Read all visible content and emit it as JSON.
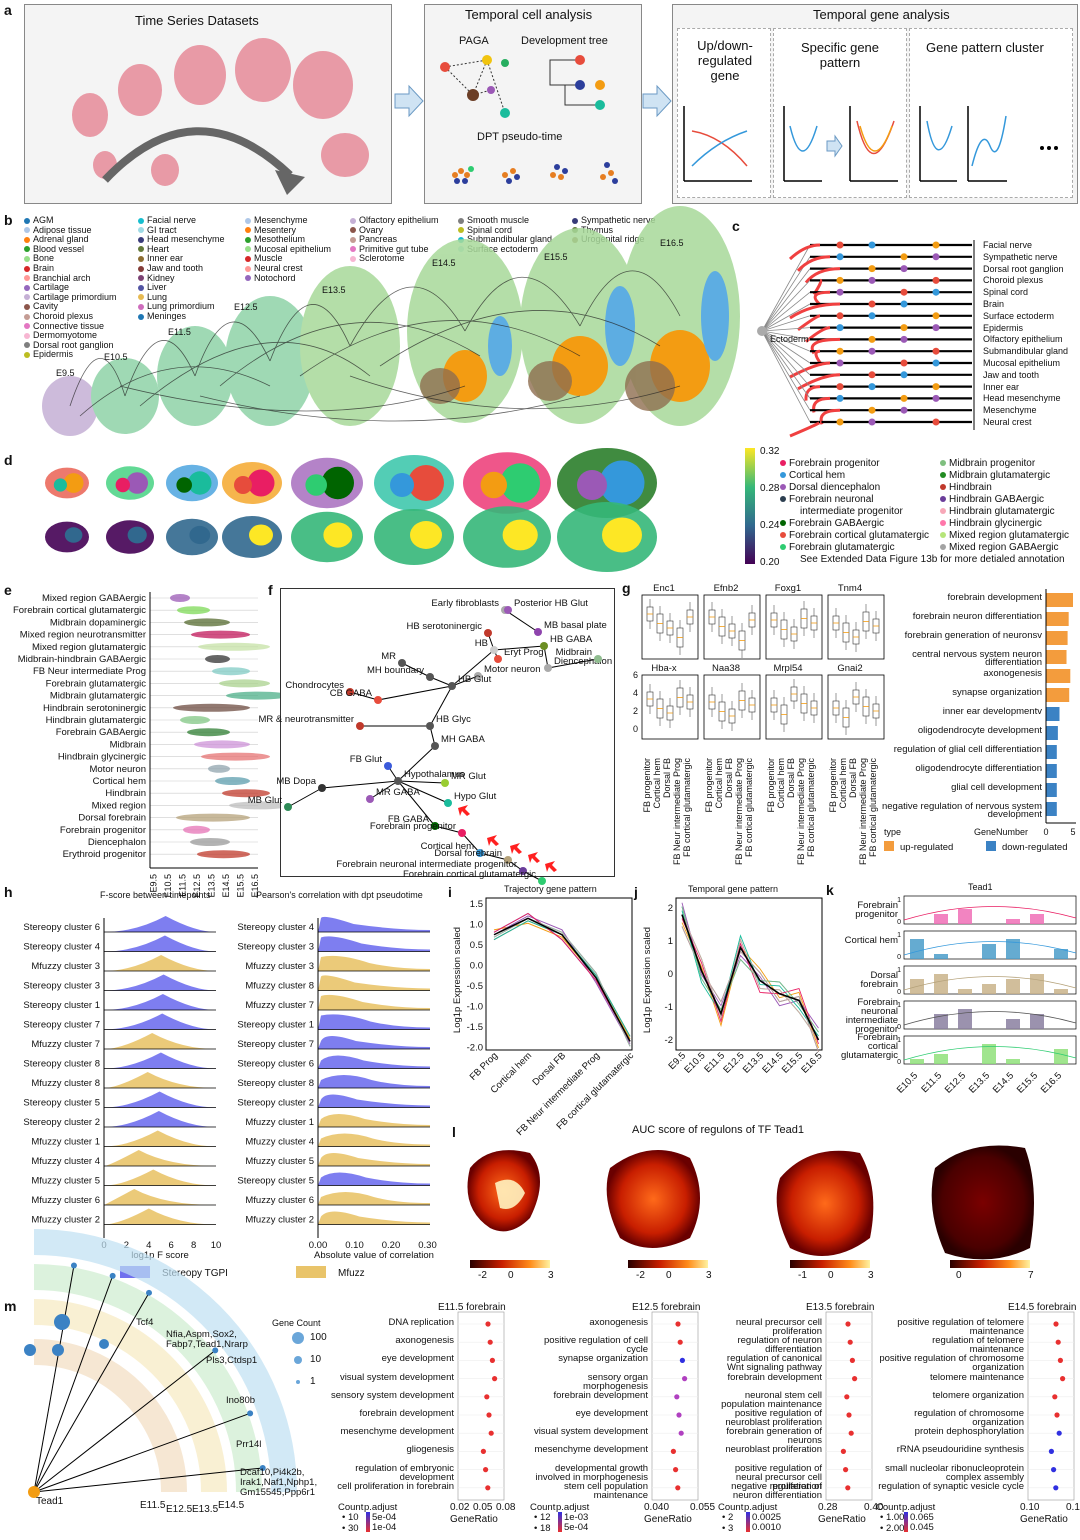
{
  "panels": {
    "a": {
      "letter": "a",
      "box1_title": "Time Series Datasets",
      "box2_title": "Temporal cell analysis",
      "box2_items": [
        "PAGA",
        "Development tree",
        "DPT pseudo-time"
      ],
      "box3_title": "Temporal gene analysis",
      "box3_items": [
        "Up/down-regulated gene",
        "Specific gene pattern",
        "Gene pattern cluster"
      ]
    },
    "b": {
      "letter": "b",
      "legend_col1": [
        "AGM",
        "Adipose tissue",
        "Adrenal gland",
        "Blood vessel",
        "Bone",
        "Brain",
        "Branchial arch",
        "Cartilage",
        "Cartilage primordium",
        "Cavity",
        "Choroid plexus",
        "Connective tissue",
        "Dermomyotome",
        "Dorsal root ganglion",
        "Epidermis"
      ],
      "legend_col2": [
        "Facial nerve",
        "GI tract",
        "Head mesenchyme",
        "Heart",
        "Inner ear",
        "Jaw and tooth",
        "Kidney",
        "Liver",
        "Lung",
        "Lung primordium",
        "Meninges"
      ],
      "legend_col3": [
        "Mesenchyme",
        "Mesentery",
        "Mesothelium",
        "Mucosal epithelium",
        "Muscle",
        "Neural crest",
        "Notochord"
      ],
      "legend_col4": [
        "Olfactory epithelium",
        "Ovary",
        "Pancreas",
        "Primitive gut tube",
        "Sclerotome"
      ],
      "legend_col5": [
        "Smooth muscle",
        "Spinal cord",
        "Submandibular gland",
        "Surface ectoderm"
      ],
      "legend_col6": [
        "Sympathetic nerve",
        "Thymus",
        "Urogenital ridge"
      ],
      "stages": [
        "E9.5",
        "E10.5",
        "E11.5",
        "E12.5",
        "E13.5",
        "E14.5",
        "E15.5",
        "E16.5"
      ]
    },
    "c": {
      "letter": "c",
      "root_label": "Ectoderm",
      "leaves": [
        "Facial nerve",
        "Sympathetic nerve",
        "Dorsal root ganglion",
        "Choroid plexus",
        "Spinal cord",
        "Brain",
        "Surface ectoderm",
        "Epidermis",
        "Olfactory epithelium",
        "Submandibular gland",
        "Mucosal epithelium",
        "Jaw and tooth",
        "Inner ear",
        "Head mesenchyme",
        "Mesenchyme",
        "Neural crest"
      ]
    },
    "d": {
      "letter": "d",
      "colorbar_ticks": [
        "0.32",
        "0.28",
        "0.24",
        "0.20"
      ],
      "legend_col1": [
        "Forebrain progenitor",
        "Cortical hem",
        "Dorsal diencephalon",
        "Forebrain neuronal",
        "intermediate progenitor",
        "Forebrain GABAergic",
        "Forebrain cortical glutamatergic",
        "Forebrain glutamatergic"
      ],
      "legend_col2": [
        "Midbrain progenitor",
        "Midbrain glutamatergic",
        "Hindbrain",
        "Hindbrain GABAergic",
        "Hindbrain glutamatergic",
        "Hindbrain glycinergic",
        "Mixed region glutamatergic",
        "Mixed region GABAergic"
      ],
      "legend_note": "See Extended Data Figure 13b for more detialed annotation"
    },
    "e": {
      "letter": "e",
      "rows": [
        "Mixed region GABAergic",
        "Forebrain cortical glutamatergic",
        "Midbrain dopaminergic",
        "Mixed region neurotransmitter",
        "Mixed region glutamatergic",
        "Midbrain-hindbrain GABAergic",
        "FB Neur intermediate Prog",
        "Forebrain glutamatergic",
        "Midbrain glutamatergic",
        "Hindbrain serotoninergic",
        "Hindbrain glutamatergic",
        "Forebrain GABAergic",
        "Midbrain",
        "Hindbrain glycinergic",
        "Motor neuron",
        "Cortical hem",
        "Hindbrain",
        "Mixed region",
        "Dorsal forebrain",
        "Forebrain progenitor",
        "Diencephalon",
        "Erythroid progenitor"
      ],
      "xticks": [
        "E9.5",
        "E10.5",
        "E11.5",
        "E12.5",
        "E13.5",
        "E14.5",
        "E15.5",
        "E16.5"
      ]
    },
    "f": {
      "letter": "f",
      "nodes": [
        "Early fibroblasts",
        "Posterior HB Glut",
        "HB serotoninergic",
        "MB basal plate",
        "MR",
        "HB",
        "HB GABA",
        "Eryt Prog",
        "Diencephalon",
        "MH boundary",
        "Motor neuron",
        "Chondrocytes",
        "CB GABA",
        "HB Glut",
        "MR & neurotransmitter",
        "HB Glyc",
        "MH GABA",
        "FB Glut",
        "Hypothalamus",
        "MB Dopa",
        "MR Glut",
        "MB Glut",
        "MR GABA",
        "Hypo Glut",
        "FB GABA",
        "Forebrain progenitor",
        "Cortical hem",
        "Dorsal forebrain",
        "Forebrain neuronal intermediate progenitor",
        "Forebrain cortical glutamatergic",
        "Midbrain"
      ]
    },
    "g": {
      "letter": "g",
      "genes_row1": [
        "Enc1",
        "Efnb2",
        "Foxg1",
        "Tnm4"
      ],
      "genes_row2": [
        "Hba-x",
        "Naa38",
        "Mrpl54",
        "Gnai2"
      ],
      "xcats": [
        "FB progenitor",
        "Cortical hem",
        "Dorsal FB",
        "FB Neur intermediate Prog",
        "FB cortical glutamatergic"
      ],
      "go_terms": [
        "forebrain development",
        "forebrain neuron differentiation",
        "forebrain generation of neuronsv",
        "central nervous system neuron differentiation",
        "axonogenesis",
        "synapse organization",
        "inner ear developmentv",
        "oligodendrocyte development",
        "regulation of glial cell differentiation",
        "oligodendrocyte differentiation",
        "glial cell development",
        "negative regulation of nervous system development"
      ],
      "go_values": [
        5,
        4.2,
        4.0,
        3.8,
        4.5,
        4.3,
        2.5,
        2.2,
        2.0,
        2.0,
        2.0,
        2.0
      ],
      "go_types": [
        "up",
        "up",
        "up",
        "up",
        "up",
        "up",
        "down",
        "down",
        "down",
        "down",
        "down",
        "down"
      ],
      "legend_type": "type",
      "legend_up": "up-regulated",
      "legend_down": "down-regulated",
      "axis_label": "GeneNumber",
      "axis_ticks": [
        "0",
        "5"
      ]
    },
    "h": {
      "letter": "h",
      "left_title": "F-score between timepoints",
      "right_title": "Pearson's correlation with dpt pseudotime",
      "left_rows": [
        "Stereopy cluster 6",
        "Stereopy cluster 4",
        "Mfuzzy cluster 3",
        "Stereopy cluster 3",
        "Stereopy cluster 1",
        "Stereopy cluster 7",
        "Mfuzzy cluster 7",
        "Stereopy cluster 8",
        "Mfuzzy cluster 8",
        "Stereopy cluster 5",
        "Stereopy cluster 2",
        "Mfuzzy cluster 1",
        "Mfuzzy cluster 4",
        "Mfuzzy cluster 5",
        "Mfuzzy cluster 6",
        "Mfuzzy cluster 2"
      ],
      "right_rows": [
        "Stereopy cluster 4",
        "Stereopy cluster 3",
        "Mfuzzy cluster 3",
        "Mfuzzy cluster 8",
        "Mfuzzy cluster 7",
        "Stereopy cluster 1",
        "Stereopy cluster 7",
        "Stereopy cluster 6",
        "Stereopy cluster 8",
        "Stereopy cluster 2",
        "Mfuzzy cluster 1",
        "Mfuzzy cluster 4",
        "Mfuzzy cluster 5",
        "Stereopy cluster 5",
        "Mfuzzy cluster 6",
        "Mfuzzy cluster 2"
      ],
      "left_xticks": [
        "0",
        "2",
        "4",
        "6",
        "8",
        "10"
      ],
      "left_xlabel": "log1p F score",
      "right_xticks": [
        "0.00",
        "0.10",
        "0.20",
        "0.30"
      ],
      "right_xlabel": "Absolute value of correlation",
      "legend": [
        "Stereopy TGPI",
        "Mfuzz"
      ]
    },
    "i": {
      "letter": "i",
      "title": "Trajectory gene pattern",
      "ylabel": "Log1p Expression scaled",
      "yticks": [
        "1.5",
        "1.0",
        "0.5",
        "0.0",
        "-0.5",
        "-1.0",
        "-1.5",
        "-2.0"
      ],
      "xticks": [
        "FB Prog",
        "Cortical hem",
        "Dorsal FB",
        "FB Neur intermediate Prog",
        "FB cortical glutamatergic"
      ]
    },
    "j": {
      "letter": "j",
      "title": "Temporal gene pattern",
      "ylabel": "Log1p Expression scaled",
      "yticks": [
        "2",
        "1",
        "0",
        "-1",
        "-2"
      ],
      "xticks": [
        "E9.5",
        "E10.5",
        "E11.5",
        "E12.5",
        "E13.5",
        "E14.5",
        "E15.5",
        "E16.5"
      ]
    },
    "k": {
      "letter": "k",
      "title": "Tead1",
      "rows": [
        "Forebrain progenitor",
        "Cortical hem",
        "Dorsal forebrain",
        "Forebrain neuronal intermediate progenitor",
        "Forebrain cortical glutamatergic"
      ],
      "xticks": [
        "E10.5",
        "E11.5",
        "E12.5",
        "E13.5",
        "E14.5",
        "E15.5",
        "E16.5"
      ]
    },
    "l": {
      "letter": "l",
      "title": "AUC score of regulons of TF Tead1",
      "colorbars": [
        [
          "-2",
          "0",
          "3"
        ],
        [
          "-2",
          "0",
          "3"
        ],
        [
          "-1",
          "0",
          "3"
        ],
        [
          "0",
          "7"
        ]
      ]
    },
    "m": {
      "letter": "m",
      "root": "Tead1",
      "leaves": [
        "Tcf4",
        "Nfia,Aspm,Sox2, Fabp7,Tead1,Nrarp",
        "Pls3,Ctdsp1",
        "Ino80b",
        "Prr14l",
        "Dcaf10,Pi4k2b, Irak1,Naf1,Nphp1, Gm15545,Ppp6r1"
      ],
      "arc_labels": [
        "E11.5",
        "E12.5",
        "E13.5",
        "E14.5"
      ],
      "gene_count_title": "Gene Count",
      "gene_count_values": [
        "100",
        "10",
        "1"
      ],
      "dotplots": [
        {
          "title": "E11.5 forebrain",
          "terms": [
            "DNA replication",
            "axonogenesis",
            "eye development",
            "visual system development",
            "sensory system development",
            "forebrain development",
            "mesenchyme development",
            "gliogenesis",
            "regulation of embryonic development",
            "cell proliferation in forebrain"
          ],
          "xticks": [
            "0.02",
            "0.05",
            "0.08"
          ],
          "count_labels": [
            "10",
            "30"
          ],
          "padj_labels": [
            "5e-04",
            "1e-04"
          ]
        },
        {
          "title": "E12.5 forebrain",
          "terms": [
            "axonogenesis",
            "positive regulation of cell cycle",
            "synapse organization",
            "sensory organ morphogenesis",
            "forebrain development",
            "eye development",
            "visual system development",
            "mesenchyme development",
            "developmental growth involved in morphogenesis",
            "stem cell population maintenance"
          ],
          "xticks": [
            "0.040",
            "0.055"
          ],
          "count_labels": [
            "12",
            "18"
          ],
          "padj_labels": [
            "1e-03",
            "5e-04"
          ]
        },
        {
          "title": "E13.5 forebrain",
          "terms": [
            "neural precursor cell proliferation",
            "regulation of neuron differentiation",
            "regulation of canonical Wnt signaling pathway",
            "forebrain development",
            "neuronal stem cell population maintenance",
            "positive regulation of neuroblast proliferation",
            "forebrain generation of neurons",
            "neuroblast proliferation",
            "positive regulation of neural precursor cell proliferation",
            "negative regulation of neuron differentiation"
          ],
          "xticks": [
            "0.28",
            "0.40"
          ],
          "count_labels": [
            "2",
            "3"
          ],
          "padj_labels": [
            "0.0025",
            "0.0010"
          ]
        },
        {
          "title": "E14.5 forebrain",
          "terms": [
            "positive regulation of telomere maintenance",
            "regulation of telomere maintenance",
            "positive regulation of chromosome organization",
            "telomere maintenance",
            "telomere organization",
            "regulation of chromosome organization",
            "protein dephosphorylation",
            "rRNA pseudouridine synthesis",
            "small nucleolar ribonucleoprotein complex assembly",
            "regulation of synaptic vesicle cycle"
          ],
          "xticks": [
            "0.10",
            "0.18"
          ],
          "count_labels": [
            "1.00",
            "2.00"
          ],
          "padj_labels": [
            "0.065",
            "0.045"
          ]
        }
      ],
      "xlabel": "GeneRatio",
      "count_title": "Count",
      "padj_title": "p.adjust"
    }
  }
}
